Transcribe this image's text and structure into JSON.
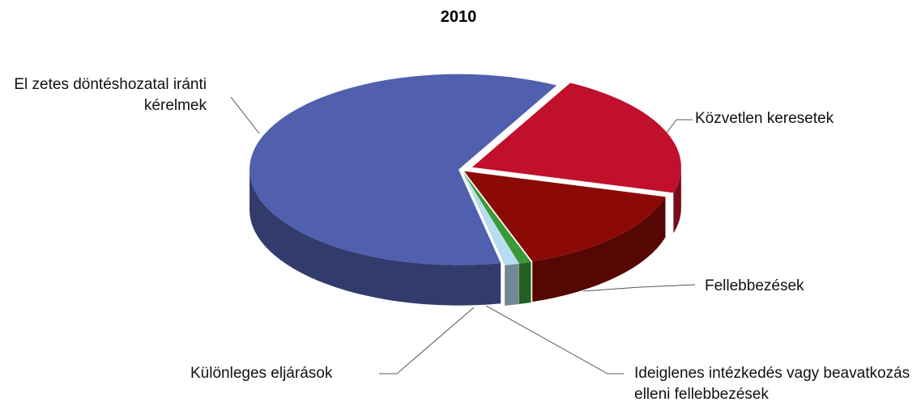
{
  "chart_data": {
    "type": "pie3d",
    "title": "2010",
    "categories": [
      "Közvetlen keresetek",
      "Fellebbezések",
      "Ideiglenes intézkedés vagy beavatkozás elleni fellebbezések",
      "Különleges eljárások",
      "El  zetes döntéshozatal iránti kérelmek"
    ],
    "values": [
      136,
      97,
      6,
      7,
      385
    ],
    "colors": [
      "#c0102c",
      "#8b0a05",
      "#3a9a3a",
      "#b8dcf0",
      "#5060ae"
    ]
  }
}
